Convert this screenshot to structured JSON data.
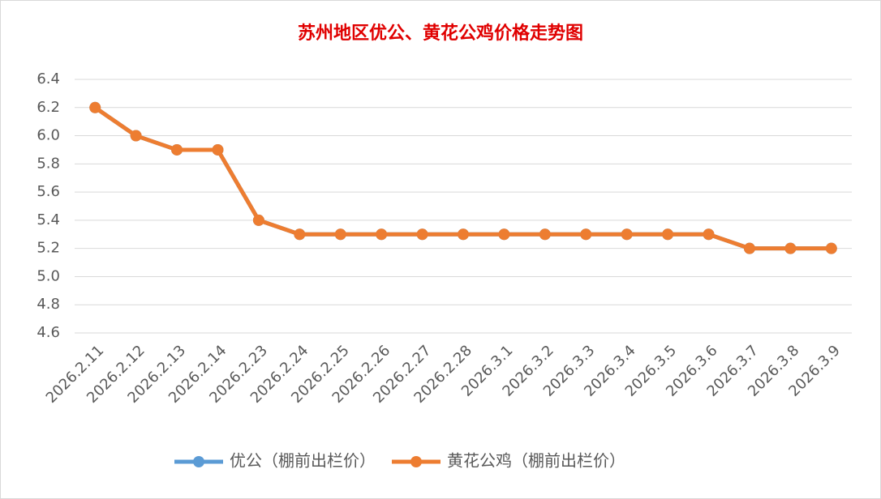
{
  "chart_data": {
    "type": "line",
    "title": "苏州地区优公、黄花公鸡价格走势图",
    "categories": [
      "2026.2.11",
      "2026.2.12",
      "2026.2.13",
      "2026.2.14",
      "2026.2.23",
      "2026.2.24",
      "2026.2.25",
      "2026.2.26",
      "2026.2.27",
      "2026.2.28",
      "2026.3.1",
      "2026.3.2",
      "2026.3.3",
      "2026.3.4",
      "2026.3.5",
      "2026.3.6",
      "2026.3.7",
      "2026.3.8",
      "2026.3.9"
    ],
    "series": [
      {
        "name": "优公（棚前出栏价）",
        "color": "#5b9bd5",
        "values": [
          6.2,
          6.0,
          5.9,
          5.9,
          5.4,
          5.3,
          5.3,
          5.3,
          5.3,
          5.3,
          5.3,
          5.3,
          5.3,
          5.3,
          5.3,
          5.3,
          5.2,
          5.2,
          5.2
        ]
      },
      {
        "name": "黄花公鸡（棚前出栏价）",
        "color": "#ed7d31",
        "values": [
          6.2,
          6.0,
          5.9,
          5.9,
          5.4,
          5.3,
          5.3,
          5.3,
          5.3,
          5.3,
          5.3,
          5.3,
          5.3,
          5.3,
          5.3,
          5.3,
          5.2,
          5.2,
          5.2
        ]
      }
    ],
    "ylim": [
      4.6,
      6.4
    ],
    "yticks": [
      4.6,
      4.8,
      {
        "value": 5,
        "label": "5.0"
      },
      5.2,
      5.4,
      5.6,
      5.8,
      {
        "value": 6,
        "label": "6.0"
      },
      6.2,
      6.4
    ],
    "grid": true,
    "legend": "bottom"
  }
}
